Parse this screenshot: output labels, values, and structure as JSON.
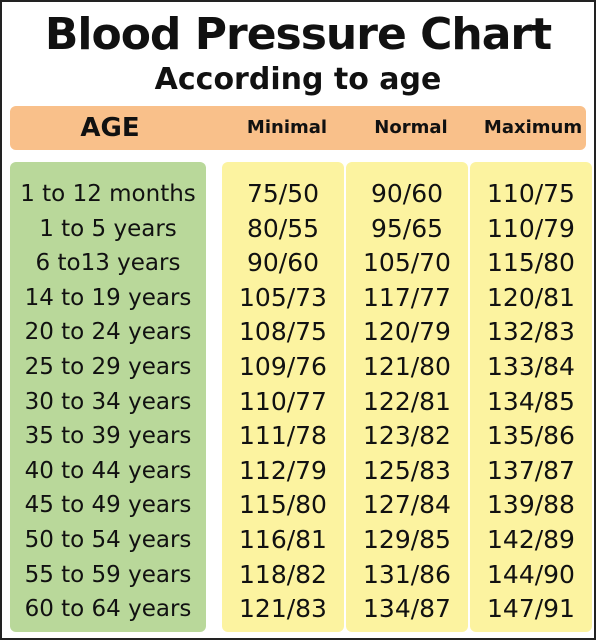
{
  "title": "Blood Pressure Chart",
  "subtitle": "According to age",
  "colors": {
    "header_bar": "#f9c08a",
    "age_column": "#b9d89a",
    "value_columns": "#fcf3a0",
    "text": "#111111"
  },
  "headers": {
    "age": "AGE",
    "minimal": "Minimal",
    "normal": "Normal",
    "maximum": "Maximum"
  },
  "rows": [
    {
      "age": "1 to 12 months",
      "minimal": "75/50",
      "normal": "90/60",
      "maximum": "110/75"
    },
    {
      "age": "1 to 5 years",
      "minimal": "80/55",
      "normal": "95/65",
      "maximum": "110/79"
    },
    {
      "age": "6 to13 years",
      "minimal": "90/60",
      "normal": "105/70",
      "maximum": "115/80"
    },
    {
      "age": "14 to 19 years",
      "minimal": "105/73",
      "normal": "117/77",
      "maximum": "120/81"
    },
    {
      "age": "20 to 24 years",
      "minimal": "108/75",
      "normal": "120/79",
      "maximum": "132/83"
    },
    {
      "age": "25 to 29 years",
      "minimal": "109/76",
      "normal": "121/80",
      "maximum": "133/84"
    },
    {
      "age": "30 to 34 years",
      "minimal": "110/77",
      "normal": "122/81",
      "maximum": "134/85"
    },
    {
      "age": "35 to 39 years",
      "minimal": "111/78",
      "normal": "123/82",
      "maximum": "135/86"
    },
    {
      "age": "40 to 44 years",
      "minimal": "112/79",
      "normal": "125/83",
      "maximum": "137/87"
    },
    {
      "age": "45 to 49 years",
      "minimal": "115/80",
      "normal": "127/84",
      "maximum": "139/88"
    },
    {
      "age": "50 to 54 years",
      "minimal": "116/81",
      "normal": "129/85",
      "maximum": "142/89"
    },
    {
      "age": "55 to 59 years",
      "minimal": "118/82",
      "normal": "131/86",
      "maximum": "144/90"
    },
    {
      "age": "60 to 64 years",
      "minimal": "121/83",
      "normal": "134/87",
      "maximum": "147/91"
    }
  ]
}
